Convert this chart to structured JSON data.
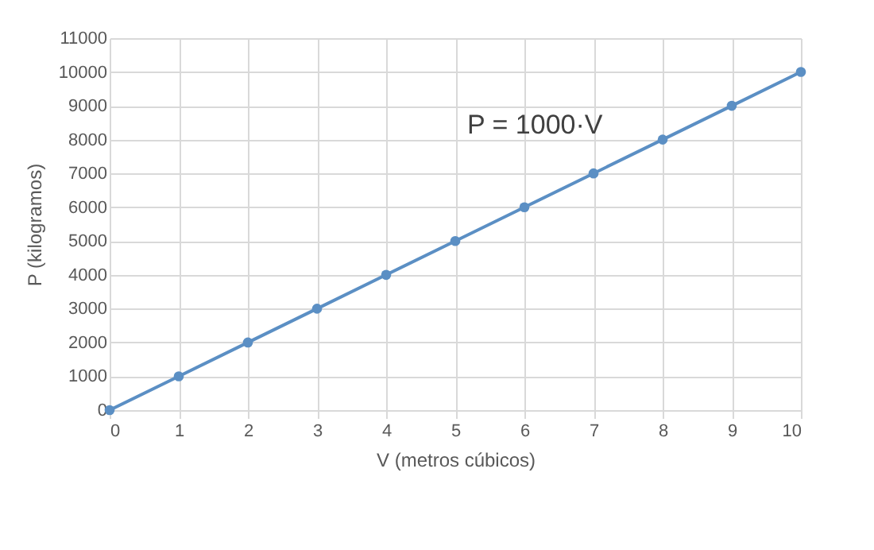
{
  "chart_data": {
    "type": "line",
    "xlabel": "V (metros cúbicos)",
    "ylabel": "P (kilogramos)",
    "x": [
      0,
      1,
      2,
      3,
      4,
      5,
      6,
      7,
      8,
      9,
      10
    ],
    "series": [
      {
        "color": "#5b8fc4",
        "values": [
          0,
          1000,
          2000,
          3000,
          4000,
          5000,
          6000,
          7000,
          8000,
          9000,
          10000
        ]
      }
    ],
    "xlim": [
      0,
      10
    ],
    "xticks": [
      0,
      1,
      2,
      3,
      4,
      5,
      6,
      7,
      8,
      9,
      10
    ],
    "ylim": [
      0,
      11000
    ],
    "yticks": [
      0,
      1000,
      2000,
      3000,
      4000,
      5000,
      6000,
      7000,
      8000,
      9000,
      10000,
      11000
    ],
    "grid": true,
    "marker": "circle",
    "line_style": "solid",
    "annotations": [
      "P = 1000·V"
    ]
  }
}
